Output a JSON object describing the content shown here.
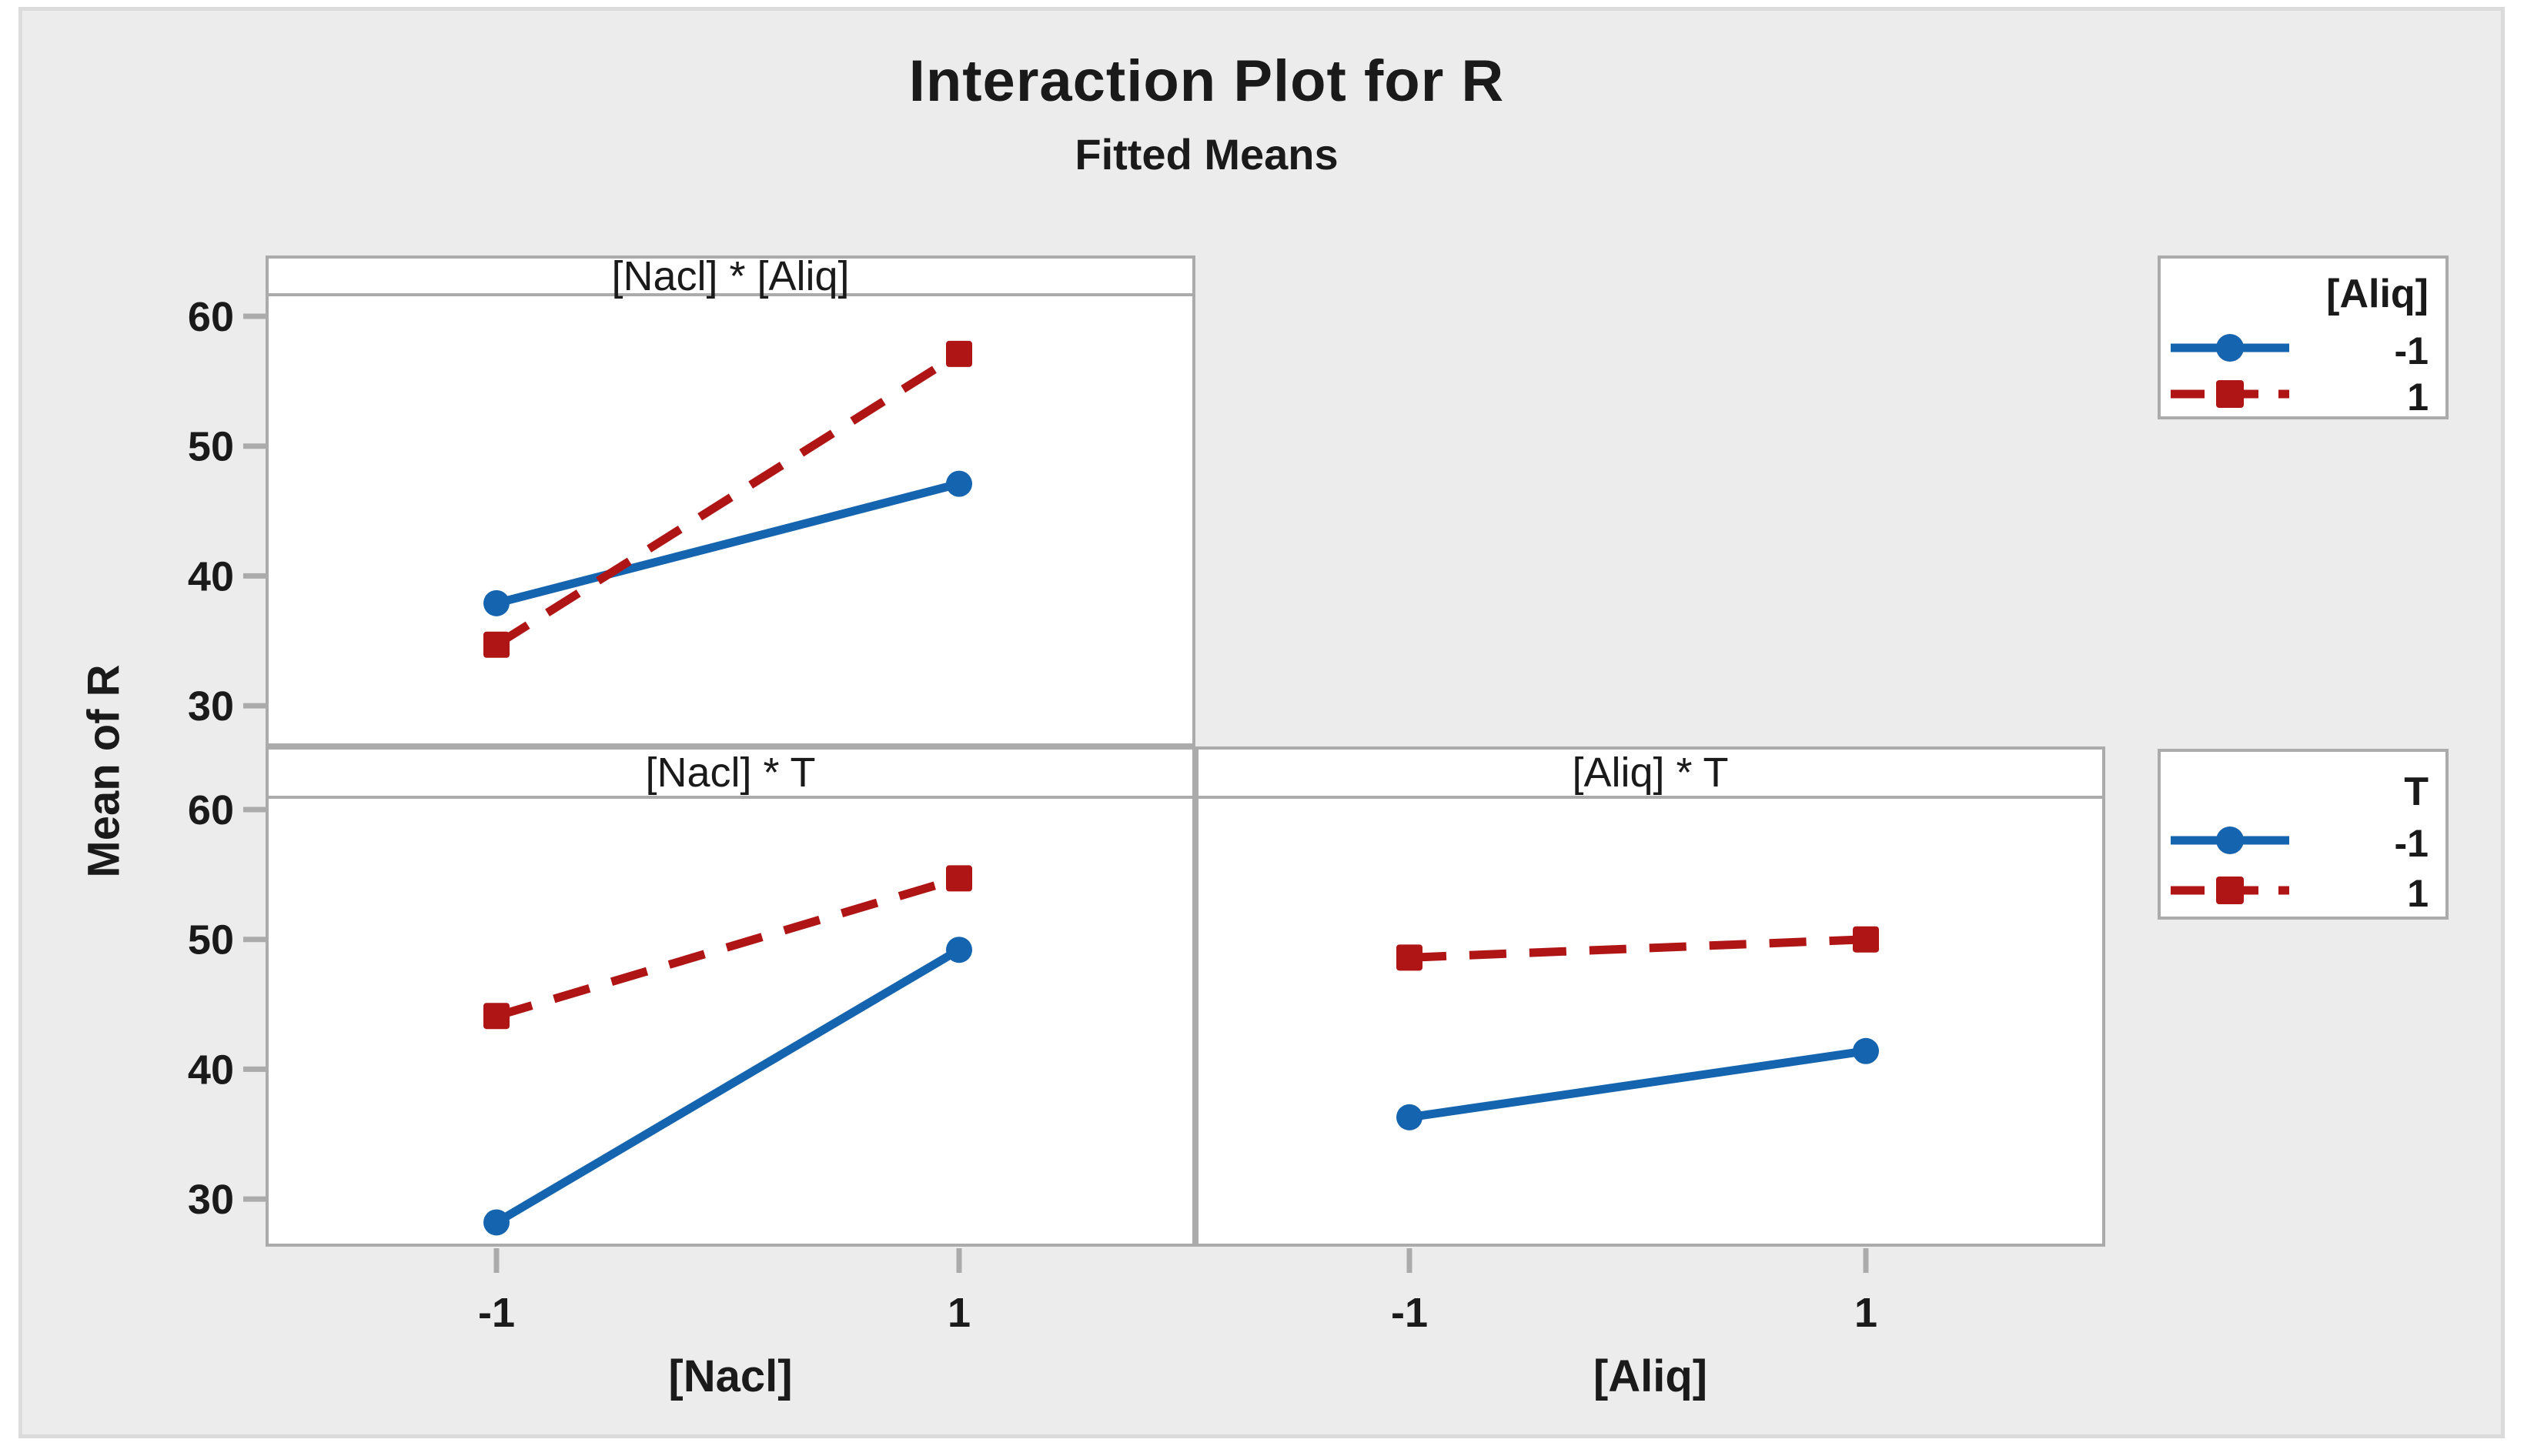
{
  "title": "Interaction Plot for R",
  "subtitle": "Fitted Means",
  "y_axis": {
    "label": "Mean of R",
    "ticks": [
      60,
      50,
      40,
      30
    ]
  },
  "x_ticks": [
    "-1",
    "1"
  ],
  "colors": {
    "blue_series": "#1464af",
    "red_series": "#b01515",
    "panel_border": "#ababab",
    "tick_gray": "#ababab",
    "plot_background": "#ececec",
    "panel_fill": "#ffffff"
  },
  "legends": [
    {
      "title": "[Aliq]",
      "entries": [
        {
          "label": "-1",
          "color": "blue_series",
          "marker": "circle",
          "dash": false
        },
        {
          "label": "1",
          "color": "red_series",
          "marker": "square",
          "dash": true
        }
      ]
    },
    {
      "title": "T",
      "entries": [
        {
          "label": "-1",
          "color": "blue_series",
          "marker": "circle",
          "dash": false
        },
        {
          "label": "1",
          "color": "red_series",
          "marker": "square",
          "dash": true
        }
      ]
    }
  ],
  "chart_data": [
    {
      "type": "line",
      "panel": "[Nacl] * [Aliq]",
      "x_label": "[Nacl]",
      "x": [
        -1,
        1
      ],
      "ylim": [
        26.5,
        61.5
      ],
      "series": [
        {
          "name": "[Aliq] = -1",
          "color": "blue_series",
          "marker": "circle",
          "dash": false,
          "values": [
            37.9,
            47.1
          ]
        },
        {
          "name": "[Aliq] = 1",
          "color": "red_series",
          "marker": "square",
          "dash": true,
          "values": [
            34.7,
            57.1
          ]
        }
      ]
    },
    {
      "type": "line",
      "panel": "[Nacl] * T",
      "x_label": "[Nacl]",
      "x": [
        -1,
        1
      ],
      "ylim": [
        26.5,
        61.5
      ],
      "series": [
        {
          "name": "T = -1",
          "color": "blue_series",
          "marker": "circle",
          "dash": false,
          "values": [
            28.2,
            49.2
          ]
        },
        {
          "name": "T = 1",
          "color": "red_series",
          "marker": "square",
          "dash": true,
          "values": [
            44.1,
            54.7
          ]
        }
      ]
    },
    {
      "type": "line",
      "panel": "[Aliq] * T",
      "x_label": "[Aliq]",
      "x": [
        -1,
        1
      ],
      "ylim": [
        26.5,
        61.5
      ],
      "series": [
        {
          "name": "T = -1",
          "color": "blue_series",
          "marker": "circle",
          "dash": false,
          "values": [
            36.3,
            41.4
          ]
        },
        {
          "name": "T = 1",
          "color": "red_series",
          "marker": "square",
          "dash": true,
          "values": [
            48.6,
            50.0
          ]
        }
      ]
    }
  ]
}
